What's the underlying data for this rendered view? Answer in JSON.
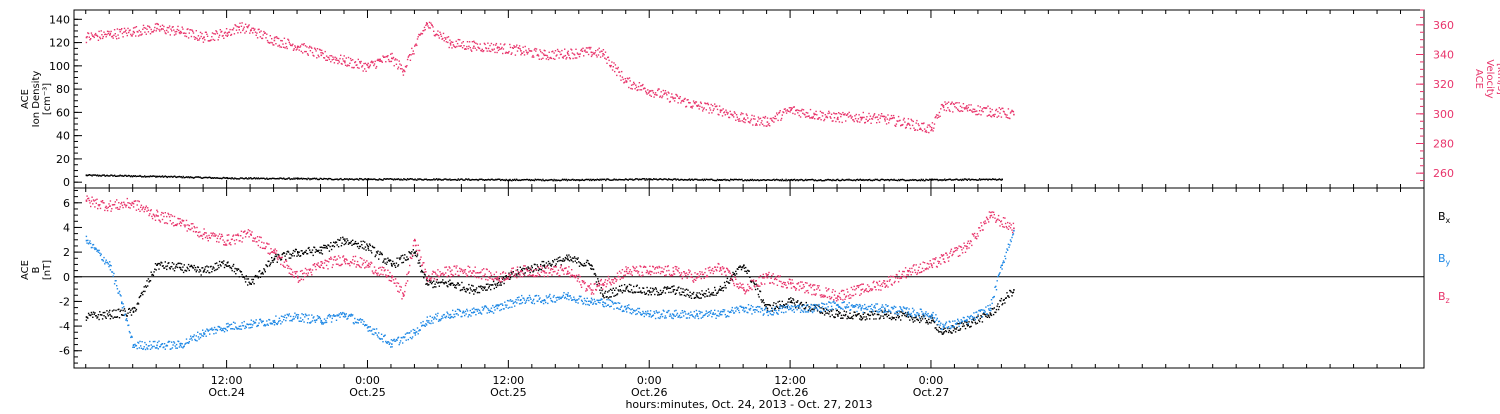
{
  "chart_data": [
    {
      "type": "scatter",
      "panel": "top",
      "ylabel_lines": [
        "ACE",
        "Ion Density",
        "[cm⁻³]"
      ],
      "ylabel2_lines": [
        "ACE",
        "Velocity",
        "[km/s]"
      ],
      "ylim": [
        -5,
        148
      ],
      "yticks": [
        0,
        20,
        40,
        60,
        80,
        100,
        120,
        140
      ],
      "y2lim": [
        250,
        370
      ],
      "y2ticks": [
        260,
        280,
        300,
        320,
        340,
        360
      ],
      "series": [
        {
          "name": "",
          "axis": "left",
          "color": "#000000",
          "points": [
            [
              0,
              6.5
            ],
            [
              6,
              5.5
            ],
            [
              12,
              4
            ],
            [
              18,
              3.5
            ],
            [
              24,
              3
            ],
            [
              30,
              3
            ],
            [
              36,
              2.5
            ],
            [
              42,
              2.5
            ],
            [
              48,
              3
            ],
            [
              54,
              2.5
            ],
            [
              60,
              2.5
            ],
            [
              66,
              2.5
            ],
            [
              72,
              2.5
            ],
            [
              78,
              3
            ]
          ]
        },
        {
          "name": "",
          "axis": "right",
          "color": "#e8346b",
          "points": [
            [
              0,
              352
            ],
            [
              2,
              354
            ],
            [
              4,
              356
            ],
            [
              6,
              358
            ],
            [
              8,
              356
            ],
            [
              10,
              352
            ],
            [
              12,
              355
            ],
            [
              13,
              359
            ],
            [
              14,
              357
            ],
            [
              16,
              350
            ],
            [
              18,
              346
            ],
            [
              20,
              340
            ],
            [
              22,
              336
            ],
            [
              24,
              332
            ],
            [
              25,
              336
            ],
            [
              26,
              338
            ],
            [
              27,
              330
            ],
            [
              29,
              361
            ],
            [
              31,
              348
            ],
            [
              33,
              346
            ],
            [
              35,
              345
            ],
            [
              37,
              343
            ],
            [
              39,
              340
            ],
            [
              41,
              341
            ],
            [
              43,
              342
            ],
            [
              44,
              341
            ],
            [
              46,
              322
            ],
            [
              48,
              316
            ],
            [
              50,
              311
            ],
            [
              52,
              306
            ],
            [
              54,
              303
            ],
            [
              56,
              297
            ],
            [
              58,
              295
            ],
            [
              60,
              303
            ],
            [
              62,
              300
            ],
            [
              64,
              298
            ],
            [
              66,
              298
            ],
            [
              68,
              297
            ],
            [
              70,
              294
            ],
            [
              72,
              290
            ],
            [
              73,
              306
            ],
            [
              75,
              304
            ],
            [
              77,
              302
            ],
            [
              79,
              300
            ]
          ]
        }
      ],
      "x_range": [
        -1,
        114
      ],
      "xlabel": ""
    },
    {
      "type": "scatter",
      "panel": "bottom",
      "ylabel_lines": [
        "ACE",
        "B",
        "[nT]"
      ],
      "ylim": [
        -7.4,
        7.2
      ],
      "yticks": [
        -6,
        -4,
        -2,
        0,
        2,
        4,
        6
      ],
      "zero_line": true,
      "series": [
        {
          "name": "Bx",
          "color": "#000000",
          "points": [
            [
              0,
              -3.2
            ],
            [
              2,
              -3
            ],
            [
              4,
              -2.8
            ],
            [
              6,
              1
            ],
            [
              8,
              0.8
            ],
            [
              10,
              0.5
            ],
            [
              12,
              1.2
            ],
            [
              14,
              -0.5
            ],
            [
              16,
              1.5
            ],
            [
              18,
              2
            ],
            [
              20,
              2.2
            ],
            [
              22,
              3
            ],
            [
              24,
              2.5
            ],
            [
              26,
              1
            ],
            [
              28,
              2
            ],
            [
              29,
              -0.5
            ],
            [
              31,
              -0.5
            ],
            [
              33,
              -1
            ],
            [
              35,
              -0.5
            ],
            [
              37,
              0.5
            ],
            [
              39,
              1
            ],
            [
              41,
              1.5
            ],
            [
              43,
              1
            ],
            [
              44,
              -1.5
            ],
            [
              46,
              -0.8
            ],
            [
              48,
              -1.2
            ],
            [
              50,
              -1
            ],
            [
              52,
              -1.5
            ],
            [
              54,
              -1
            ],
            [
              56,
              1
            ],
            [
              58,
              -2.5
            ],
            [
              60,
              -2
            ],
            [
              62,
              -2.5
            ],
            [
              64,
              -3
            ],
            [
              66,
              -3.2
            ],
            [
              68,
              -3
            ],
            [
              70,
              -3.2
            ],
            [
              72,
              -3.5
            ],
            [
              73,
              -4.5
            ],
            [
              75,
              -3.8
            ],
            [
              77,
              -3
            ],
            [
              79,
              -1
            ]
          ]
        },
        {
          "name": "By",
          "color": "#1e88e5",
          "points": [
            [
              0,
              3
            ],
            [
              2,
              1
            ],
            [
              3,
              -2
            ],
            [
              4,
              -5.5
            ],
            [
              6,
              -5.5
            ],
            [
              8,
              -5.5
            ],
            [
              10,
              -4.5
            ],
            [
              12,
              -4
            ],
            [
              14,
              -3.8
            ],
            [
              16,
              -3.5
            ],
            [
              18,
              -3.2
            ],
            [
              20,
              -3.5
            ],
            [
              22,
              -3
            ],
            [
              24,
              -4
            ],
            [
              26,
              -5.4
            ],
            [
              28,
              -4.5
            ],
            [
              29,
              -3.5
            ],
            [
              31,
              -3
            ],
            [
              33,
              -2.8
            ],
            [
              35,
              -2.5
            ],
            [
              37,
              -1.8
            ],
            [
              39,
              -1.8
            ],
            [
              41,
              -1.5
            ],
            [
              43,
              -2
            ],
            [
              44,
              -2
            ],
            [
              46,
              -2.5
            ],
            [
              48,
              -3
            ],
            [
              50,
              -3
            ],
            [
              52,
              -3
            ],
            [
              54,
              -3
            ],
            [
              56,
              -2.5
            ],
            [
              58,
              -2.8
            ],
            [
              60,
              -2.5
            ],
            [
              62,
              -2.5
            ],
            [
              64,
              -2.2
            ],
            [
              66,
              -2.5
            ],
            [
              68,
              -2.5
            ],
            [
              70,
              -2.8
            ],
            [
              72,
              -3
            ],
            [
              73,
              -4
            ],
            [
              75,
              -3.5
            ],
            [
              77,
              -2.5
            ],
            [
              78,
              1
            ],
            [
              79,
              3.8
            ]
          ]
        },
        {
          "name": "Bz",
          "color": "#e8346b",
          "points": [
            [
              0,
              6.2
            ],
            [
              2,
              5.8
            ],
            [
              4,
              6
            ],
            [
              6,
              5
            ],
            [
              8,
              4.5
            ],
            [
              10,
              3.5
            ],
            [
              12,
              3
            ],
            [
              14,
              3.5
            ],
            [
              16,
              2
            ],
            [
              18,
              0
            ],
            [
              20,
              1
            ],
            [
              22,
              1.5
            ],
            [
              24,
              1
            ],
            [
              26,
              0
            ],
            [
              27,
              -1.5
            ],
            [
              28,
              3
            ],
            [
              29,
              0
            ],
            [
              31,
              0.5
            ],
            [
              33,
              0.5
            ],
            [
              35,
              0
            ],
            [
              37,
              0.5
            ],
            [
              39,
              0.5
            ],
            [
              41,
              0.5
            ],
            [
              43,
              -1
            ],
            [
              44,
              -0.5
            ],
            [
              46,
              0.5
            ],
            [
              48,
              0.5
            ],
            [
              50,
              0.5
            ],
            [
              52,
              0
            ],
            [
              54,
              0.8
            ],
            [
              56,
              -1
            ],
            [
              58,
              0
            ],
            [
              60,
              -0.5
            ],
            [
              62,
              -1
            ],
            [
              64,
              -1.5
            ],
            [
              66,
              -1
            ],
            [
              68,
              -0.5
            ],
            [
              70,
              0.5
            ],
            [
              72,
              1
            ],
            [
              73,
              1.5
            ],
            [
              75,
              2.5
            ],
            [
              77,
              5
            ],
            [
              79,
              4
            ]
          ]
        }
      ],
      "x_range": [
        -1,
        114
      ],
      "xlabel": "hours:minutes, Oct. 24, 2013 - Oct. 27, 2013"
    }
  ],
  "x_axis": {
    "ticks": [
      {
        "hour": 12,
        "label1": "12:00",
        "label2": "Oct.24"
      },
      {
        "hour": 24,
        "label1": "0:00",
        "label2": "Oct.25"
      },
      {
        "hour": 36,
        "label1": "12:00",
        "label2": "Oct.25"
      },
      {
        "hour": 48,
        "label1": "0:00",
        "label2": "Oct.26"
      },
      {
        "hour": 60,
        "label1": "12:00",
        "label2": "Oct.26"
      },
      {
        "hour": 72,
        "label1": "0:00",
        "label2": "Oct.27"
      }
    ],
    "minor_tick_every_hours": 2,
    "label": "hours:minutes, Oct. 24, 2013 - Oct. 27, 2013"
  },
  "legend_bottom": [
    {
      "label": "B",
      "sub": "x",
      "color": "#000000"
    },
    {
      "label": "B",
      "sub": "y",
      "color": "#1e88e5"
    },
    {
      "label": "B",
      "sub": "z",
      "color": "#e8346b"
    }
  ],
  "colors": {
    "axis": "#000000",
    "velocity": "#e8346b",
    "bx": "#000000",
    "by": "#1e88e5",
    "bz": "#e8346b"
  }
}
